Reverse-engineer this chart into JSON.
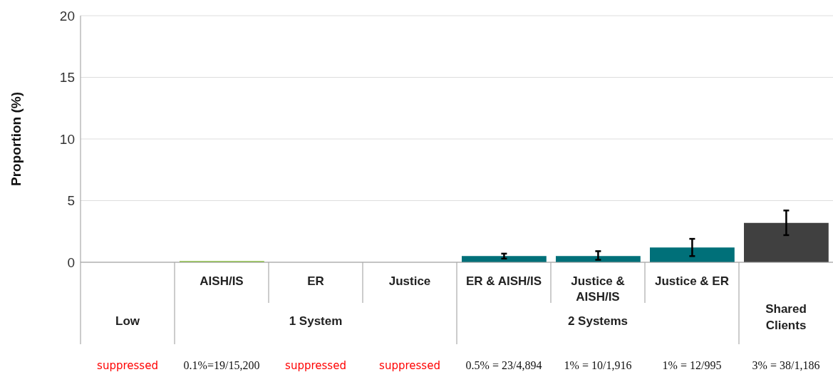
{
  "chart_data": {
    "type": "bar",
    "ylabel": "Proportion (%)",
    "categories": [
      null,
      "AISH/IS",
      "ER",
      "Justice",
      "ER & AISH/IS",
      "Justice & AISH/IS",
      "Justice & ER",
      null
    ],
    "values": [
      null,
      0.1,
      null,
      null,
      0.5,
      0.5,
      1.2,
      3.2
    ],
    "colors": [
      "#8dc63f",
      "#8dc63f",
      "#007079",
      "#007079",
      "#007079",
      "#007079",
      "#007079",
      "#404040"
    ],
    "errors": [
      null,
      null,
      null,
      null,
      [
        0.3,
        0.7
      ],
      [
        0.2,
        0.9
      ],
      [
        0.5,
        1.9
      ],
      [
        2.2,
        4.2
      ]
    ],
    "value_labels": [
      "suppressed",
      "0.1%=19/15,200",
      "suppressed",
      "suppressed",
      "0.5% = 23/4,894",
      "1% = 10/1,916",
      "1% = 12/995",
      "3% = 38/1,186"
    ],
    "annotations": [
      "Low",
      "1 System",
      "2 Systems",
      "Shared Clients"
    ],
    "ylim": [
      0,
      20
    ],
    "yticks": [
      0,
      5,
      10,
      15,
      20
    ],
    "grid": "y"
  }
}
